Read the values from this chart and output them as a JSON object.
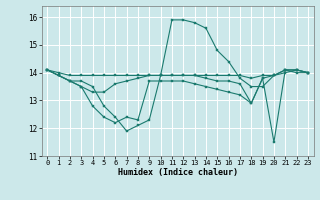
{
  "xlabel": "Humidex (Indice chaleur)",
  "bg_color": "#cce8ea",
  "grid_color": "#ffffff",
  "line_color": "#1a7a6e",
  "xlim": [
    -0.5,
    23.5
  ],
  "ylim": [
    11,
    16.4
  ],
  "yticks": [
    11,
    12,
    13,
    14,
    15,
    16
  ],
  "xticks": [
    0,
    1,
    2,
    3,
    4,
    5,
    6,
    7,
    8,
    9,
    10,
    11,
    12,
    13,
    14,
    15,
    16,
    17,
    18,
    19,
    20,
    21,
    22,
    23
  ],
  "series": [
    [
      14.1,
      13.9,
      13.7,
      13.7,
      13.5,
      12.8,
      12.4,
      11.9,
      12.1,
      12.3,
      13.9,
      15.9,
      15.9,
      15.8,
      15.6,
      14.8,
      14.4,
      13.8,
      13.5,
      13.5,
      13.9,
      14.1,
      14.1,
      14.0
    ],
    [
      14.1,
      13.9,
      13.7,
      13.5,
      12.8,
      12.4,
      12.2,
      12.4,
      12.3,
      13.7,
      13.7,
      13.7,
      13.7,
      13.6,
      13.5,
      13.4,
      13.3,
      13.2,
      12.9,
      13.8,
      11.5,
      14.1,
      14.0,
      14.0
    ],
    [
      14.1,
      13.9,
      13.7,
      13.5,
      13.3,
      13.3,
      13.6,
      13.7,
      13.8,
      13.9,
      13.9,
      13.9,
      13.9,
      13.9,
      13.8,
      13.7,
      13.7,
      13.6,
      12.9,
      13.8,
      13.9,
      14.0,
      14.1,
      14.0
    ],
    [
      14.1,
      14.0,
      13.9,
      13.9,
      13.9,
      13.9,
      13.9,
      13.9,
      13.9,
      13.9,
      13.9,
      13.9,
      13.9,
      13.9,
      13.9,
      13.9,
      13.9,
      13.9,
      13.8,
      13.9,
      13.9,
      14.1,
      14.1,
      14.0
    ]
  ]
}
